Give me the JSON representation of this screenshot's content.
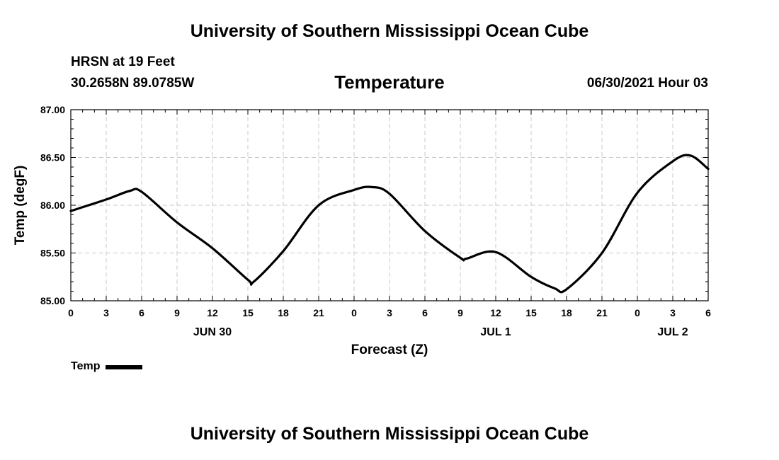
{
  "header": {
    "title": "University of Southern Mississippi Ocean Cube",
    "station": "HRSN at 19 Feet",
    "coordinates": "30.2658N  89.0785W",
    "variable": "Temperature",
    "timestamp": "06/30/2021 Hour 03"
  },
  "footer": {
    "title": "University of Southern Mississippi Ocean Cube"
  },
  "legend": {
    "label": "Temp",
    "color": "#000000"
  },
  "chart_data": {
    "type": "line",
    "xlabel": "Forecast (Z)",
    "ylabel": "Temp (degF)",
    "xlim": [
      0,
      54
    ],
    "ylim": [
      85.0,
      87.0
    ],
    "grid": true,
    "legend_position": "bottom-left",
    "x_tick_values": [
      0,
      3,
      6,
      9,
      12,
      15,
      18,
      21,
      24,
      27,
      30,
      33,
      36,
      39,
      42,
      45,
      48,
      51,
      54
    ],
    "x_tick_labels": [
      "0",
      "3",
      "6",
      "9",
      "12",
      "15",
      "18",
      "21",
      "0",
      "3",
      "6",
      "9",
      "12",
      "15",
      "18",
      "21",
      "0",
      "3",
      "6"
    ],
    "y_tick_values": [
      85.0,
      85.5,
      86.0,
      86.5,
      87.0
    ],
    "y_tick_labels": [
      "85.00",
      "85.50",
      "86.00",
      "86.50",
      "87.00"
    ],
    "date_labels": [
      {
        "x": 12,
        "label": "JUN 30"
      },
      {
        "x": 36,
        "label": "JUL 1"
      },
      {
        "x": 51,
        "label": "JUL 2"
      }
    ],
    "series": [
      {
        "name": "Temp",
        "color": "#000000",
        "x": [
          0,
          3,
          5,
          6,
          9,
          12,
          15,
          15.5,
          18,
          21,
          24,
          25.5,
          27,
          30,
          33,
          33.5,
          36,
          39,
          41,
          42,
          45,
          48,
          51,
          52.5,
          54
        ],
        "y": [
          85.94,
          86.06,
          86.15,
          86.14,
          85.82,
          85.55,
          85.22,
          85.2,
          85.52,
          86.0,
          86.16,
          86.19,
          86.12,
          85.73,
          85.45,
          85.44,
          85.51,
          85.25,
          85.13,
          85.12,
          85.5,
          86.13,
          86.46,
          86.52,
          86.38
        ]
      }
    ]
  }
}
